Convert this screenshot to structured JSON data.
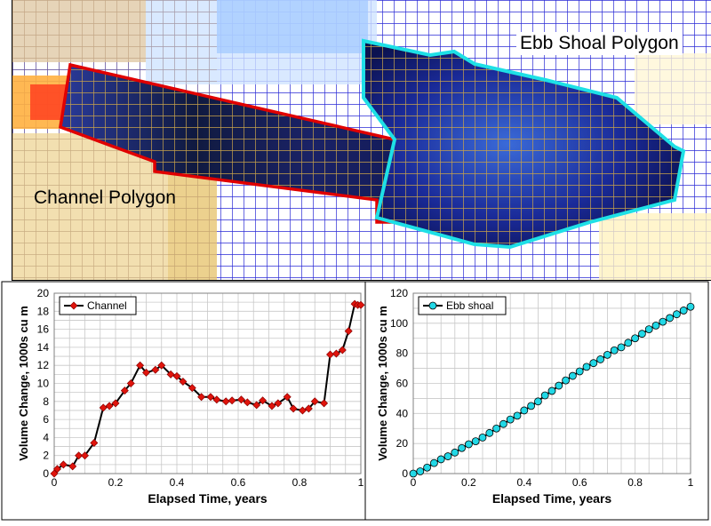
{
  "map": {
    "ebb_label": "Ebb Shoal Polygon",
    "channel_label": "Channel Polygon",
    "colors": {
      "channel_outline": "#e00000",
      "ebb_outline": "#1ee0e6",
      "grid_blue": "#2a2ad6",
      "grid_gold": "#c8a24a"
    }
  },
  "chart_data": [
    {
      "type": "line",
      "xlabel": "Elapsed Time, years",
      "ylabel": "Volume Change, 1000s cu m",
      "xlim": [
        0,
        1
      ],
      "ylim": [
        0,
        20
      ],
      "xticks": [
        "0",
        "0.2",
        "0.4",
        "0.6",
        "0.8",
        "1"
      ],
      "yticks": [
        "0",
        "2",
        "4",
        "6",
        "8",
        "10",
        "12",
        "14",
        "16",
        "18",
        "20"
      ],
      "grid": true,
      "legend": "top-left",
      "series": [
        {
          "name": "Channel",
          "color": "#e0140c",
          "marker": "diamond",
          "x": [
            0,
            0.01,
            0.03,
            0.06,
            0.08,
            0.1,
            0.13,
            0.16,
            0.18,
            0.2,
            0.23,
            0.25,
            0.28,
            0.3,
            0.33,
            0.35,
            0.38,
            0.4,
            0.42,
            0.45,
            0.48,
            0.51,
            0.53,
            0.56,
            0.58,
            0.61,
            0.63,
            0.66,
            0.68,
            0.71,
            0.73,
            0.76,
            0.78,
            0.81,
            0.83,
            0.85,
            0.88,
            0.9,
            0.92,
            0.94,
            0.96,
            0.98,
            0.99,
            1.0
          ],
          "y": [
            0,
            0.5,
            1.0,
            0.8,
            2.0,
            2.0,
            3.4,
            7.3,
            7.5,
            7.8,
            9.2,
            10.0,
            12.0,
            11.2,
            11.5,
            12.0,
            11.0,
            10.8,
            10.2,
            9.5,
            8.5,
            8.5,
            8.2,
            8.0,
            8.1,
            8.2,
            7.9,
            7.6,
            8.1,
            7.5,
            7.8,
            8.5,
            7.2,
            7.0,
            7.2,
            8.0,
            7.8,
            13.2,
            13.3,
            13.7,
            15.8,
            18.8,
            18.7,
            18.7
          ]
        }
      ]
    },
    {
      "type": "line",
      "xlabel": "Elapsed Time, years",
      "ylabel": "Volume Change, 1000s cu m",
      "xlim": [
        0,
        1
      ],
      "ylim": [
        0,
        120
      ],
      "xticks": [
        "0",
        "0.2",
        "0.4",
        "0.6",
        "0.8",
        "1"
      ],
      "yticks": [
        "0",
        "20",
        "40",
        "60",
        "80",
        "100",
        "120"
      ],
      "grid": true,
      "legend": "top-left",
      "series": [
        {
          "name": "Ebb shoal",
          "color": "#22d8e6",
          "marker": "circle",
          "x": [
            0,
            0.025,
            0.05,
            0.075,
            0.1,
            0.125,
            0.15,
            0.175,
            0.2,
            0.225,
            0.25,
            0.275,
            0.3,
            0.325,
            0.35,
            0.375,
            0.4,
            0.425,
            0.45,
            0.475,
            0.5,
            0.525,
            0.55,
            0.575,
            0.6,
            0.625,
            0.65,
            0.675,
            0.7,
            0.725,
            0.75,
            0.775,
            0.8,
            0.825,
            0.85,
            0.875,
            0.9,
            0.925,
            0.95,
            0.975,
            1.0
          ],
          "y": [
            0,
            1.5,
            4,
            7,
            9.5,
            11.5,
            14,
            17,
            19.5,
            21.5,
            24,
            27,
            30,
            33,
            36,
            38.5,
            42,
            45,
            48,
            52,
            55,
            58.5,
            62,
            65,
            68,
            71,
            73.5,
            76,
            79,
            82,
            84,
            87,
            90,
            93,
            96,
            98.5,
            101,
            103.5,
            106,
            108.5,
            111
          ]
        }
      ]
    }
  ]
}
